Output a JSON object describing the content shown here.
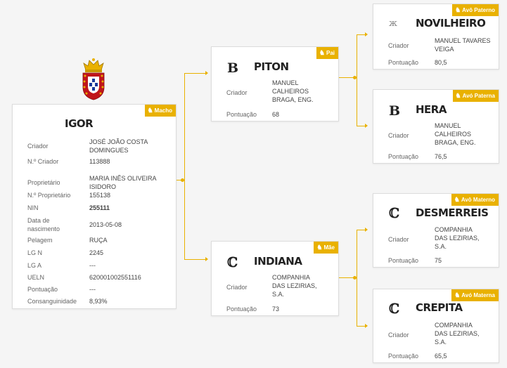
{
  "accent_color": "#e9b100",
  "main": {
    "name": "IGOR",
    "badge": "Macho",
    "badge_icon": "horse-icon",
    "crest": "coat-of-arms-icon",
    "fields": [
      {
        "label": "Criador",
        "value": "JOSÉ JOÃO COSTA DOMINGUES"
      },
      {
        "label": "N.º Criador",
        "value": "113888"
      },
      {
        "label": "Proprietário",
        "value": "MARIA INÊS OLIVEIRA ISIDORO"
      },
      {
        "label": "N.º Proprietário",
        "value": "155138"
      },
      {
        "label": "NIN",
        "value": "255111"
      },
      {
        "label": "Data de nascimento",
        "value": "2013-05-08"
      },
      {
        "label": "Pelagem",
        "value": "RUÇA"
      },
      {
        "label": "LG N",
        "value": "2245"
      },
      {
        "label": "LG A",
        "value": "---"
      },
      {
        "label": "UELN",
        "value": "620001002551116"
      },
      {
        "label": "Pontuação",
        "value": "---"
      },
      {
        "label": "Consanguinidade",
        "value": "8,93%"
      }
    ]
  },
  "father": {
    "name": "PITON",
    "badge": "Pai",
    "brand": "B",
    "fields": [
      {
        "label": "Criador",
        "value": "MANUEL CALHEIROS BRAGA, ENG."
      },
      {
        "label": "Pontuação",
        "value": "68"
      }
    ]
  },
  "mother": {
    "name": "INDIANA",
    "badge": "Mãe",
    "brand": "ℂ",
    "fields": [
      {
        "label": "Criador",
        "value": "COMPANHIA DAS LEZIRIAS, S.A."
      },
      {
        "label": "Pontuação",
        "value": "73"
      }
    ]
  },
  "pat_grandfather": {
    "name": "NOVILHEIRO",
    "badge": "Avô Paterno",
    "brand": "ж",
    "fields": [
      {
        "label": "Criador",
        "value": "MANUEL TAVARES VEIGA"
      },
      {
        "label": "Pontuação",
        "value": "80,5"
      }
    ]
  },
  "pat_grandmother": {
    "name": "HERA",
    "badge": "Avó Paterna",
    "brand": "B",
    "fields": [
      {
        "label": "Criador",
        "value": "MANUEL CALHEIROS BRAGA, ENG."
      },
      {
        "label": "Pontuação",
        "value": "76,5"
      }
    ]
  },
  "mat_grandfather": {
    "name": "DESMERREIS",
    "badge": "Avô Materno",
    "brand": "ℂ",
    "fields": [
      {
        "label": "Criador",
        "value": "COMPANHIA DAS LEZIRIAS, S.A."
      },
      {
        "label": "Pontuação",
        "value": "75"
      }
    ]
  },
  "mat_grandmother": {
    "name": "CREPITA",
    "badge": "Avó Materna",
    "brand": "ℂ",
    "fields": [
      {
        "label": "Criador",
        "value": "COMPANHIA DAS LEZIRIAS, S.A."
      },
      {
        "label": "Pontuação",
        "value": "65,5"
      }
    ]
  }
}
